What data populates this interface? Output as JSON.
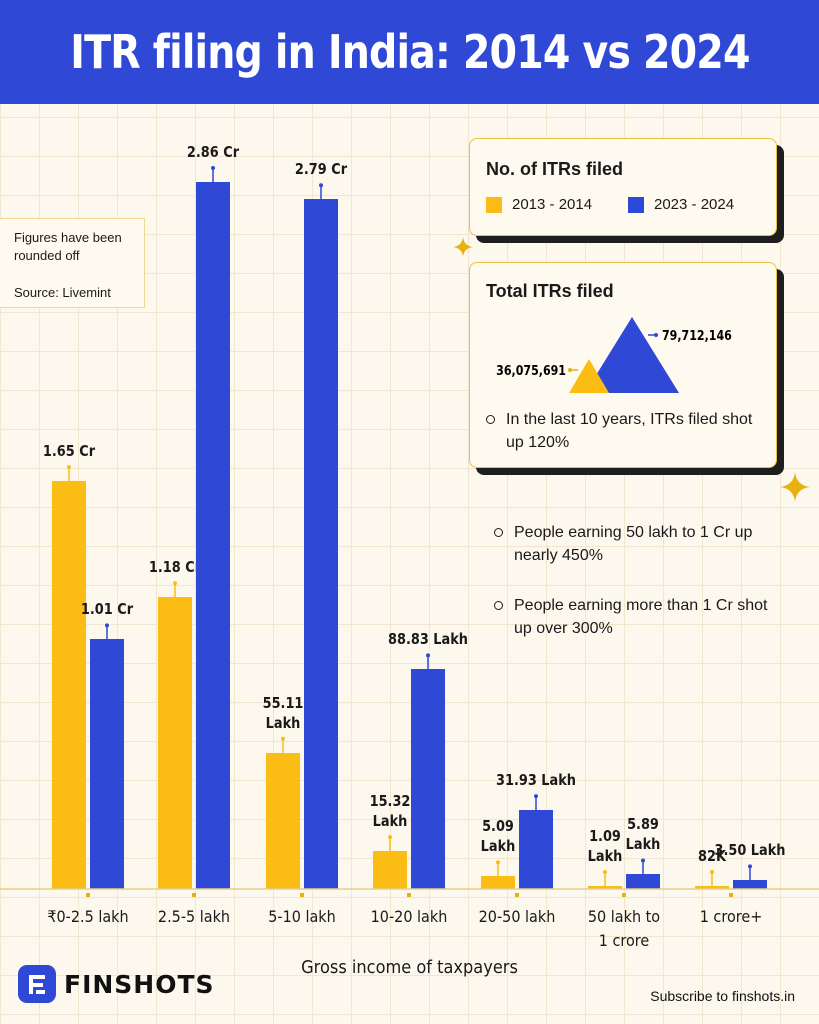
{
  "header": {
    "title": "ITR filing in India: 2014 vs 2024"
  },
  "note": {
    "line1": "Figures have been rounded off",
    "source": "Source: Livemint"
  },
  "colors": {
    "y2014": "#fbbd13",
    "y2024": "#2f49d6",
    "header": "#2f49d6"
  },
  "legend": {
    "title": "No. of ITRs filed",
    "items": [
      {
        "label": "2013 - 2014",
        "color": "#fbbd13"
      },
      {
        "label": "2023 - 2024",
        "color": "#2f49d6"
      }
    ]
  },
  "total": {
    "title": "Total ITRs filed",
    "value_2014": 36075691,
    "value_2024": 79712146,
    "label_2014": "36,075,691",
    "label_2024": "79,712,146",
    "bullet": "In the last 10 years, ITRs filed shot up 120%"
  },
  "bullets": [
    "People earning 50 lakh to 1 Cr up nearly 450%",
    "People earning more than 1 Cr shot up over 300%"
  ],
  "chart_data": {
    "type": "bar",
    "categories": [
      "₹0-2.5 lakh",
      "2.5-5 lakh",
      "5-10 lakh",
      "10-20 lakh",
      "20-50 lakh",
      "50 lakh to\n1 crore",
      "1 crore+"
    ],
    "series": [
      {
        "name": "2013 - 2014",
        "values": [
          16500000,
          11800000,
          5511000,
          1532000,
          509000,
          109000,
          82000
        ],
        "labels": [
          "1.65 Cr",
          "1.18 Cr",
          "55.11\nLakh",
          "15.32\nLakh",
          "5.09\nLakh",
          "1.09\nLakh",
          "82K"
        ]
      },
      {
        "name": "2023 - 2024",
        "values": [
          10100000,
          28600000,
          27900000,
          8883000,
          3193000,
          589000,
          350000
        ],
        "labels": [
          "1.01 Cr",
          "2.86 Cr",
          "2.79 Cr",
          "88.83 Lakh",
          "31.93 Lakh",
          "5.89\nLakh",
          "3.50 Lakh"
        ]
      }
    ],
    "xlabel": "Gross income of taxpayers",
    "ylabel": "",
    "ylim": [
      0,
      28600000
    ]
  },
  "footer": {
    "brand": "FINSHOTS",
    "subscribe": "Subscribe to finshots.in"
  }
}
